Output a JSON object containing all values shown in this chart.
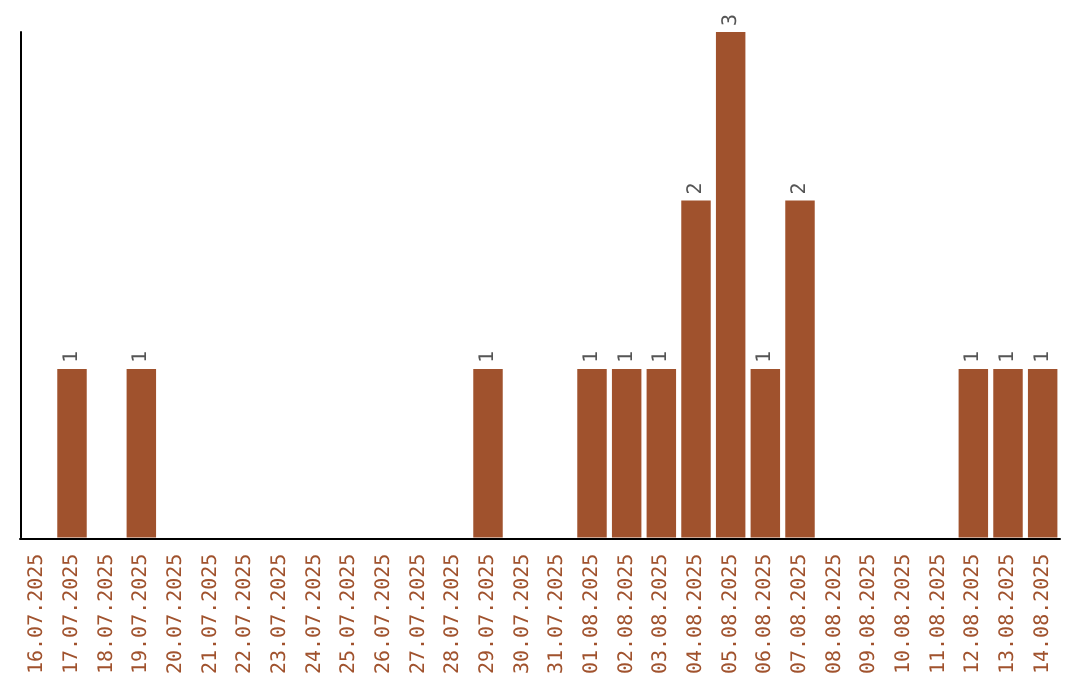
{
  "chart_data": {
    "type": "bar",
    "categories": [
      "16.07.2025",
      "17.07.2025",
      "18.07.2025",
      "19.07.2025",
      "20.07.2025",
      "21.07.2025",
      "22.07.2025",
      "23.07.2025",
      "24.07.2025",
      "25.07.2025",
      "26.07.2025",
      "27.07.2025",
      "28.07.2025",
      "29.07.2025",
      "30.07.2025",
      "31.07.2025",
      "01.08.2025",
      "02.08.2025",
      "03.08.2025",
      "04.08.2025",
      "05.08.2025",
      "06.08.2025",
      "07.08.2025",
      "08.08.2025",
      "09.08.2025",
      "10.08.2025",
      "11.08.2025",
      "12.08.2025",
      "13.08.2025",
      "14.08.2025"
    ],
    "values": [
      0,
      1,
      0,
      1,
      0,
      0,
      0,
      0,
      0,
      0,
      0,
      0,
      0,
      1,
      0,
      0,
      1,
      1,
      1,
      2,
      3,
      1,
      2,
      0,
      0,
      0,
      0,
      1,
      1,
      1
    ],
    "value_labels": [
      null,
      "1",
      null,
      "1",
      null,
      null,
      null,
      null,
      null,
      null,
      null,
      null,
      null,
      "1",
      null,
      null,
      "1",
      "1",
      "1",
      "2",
      "3",
      "1",
      "2",
      null,
      null,
      null,
      null,
      "1",
      "1",
      "1"
    ],
    "color": "#a0522d",
    "tick_labels": "x"
  }
}
